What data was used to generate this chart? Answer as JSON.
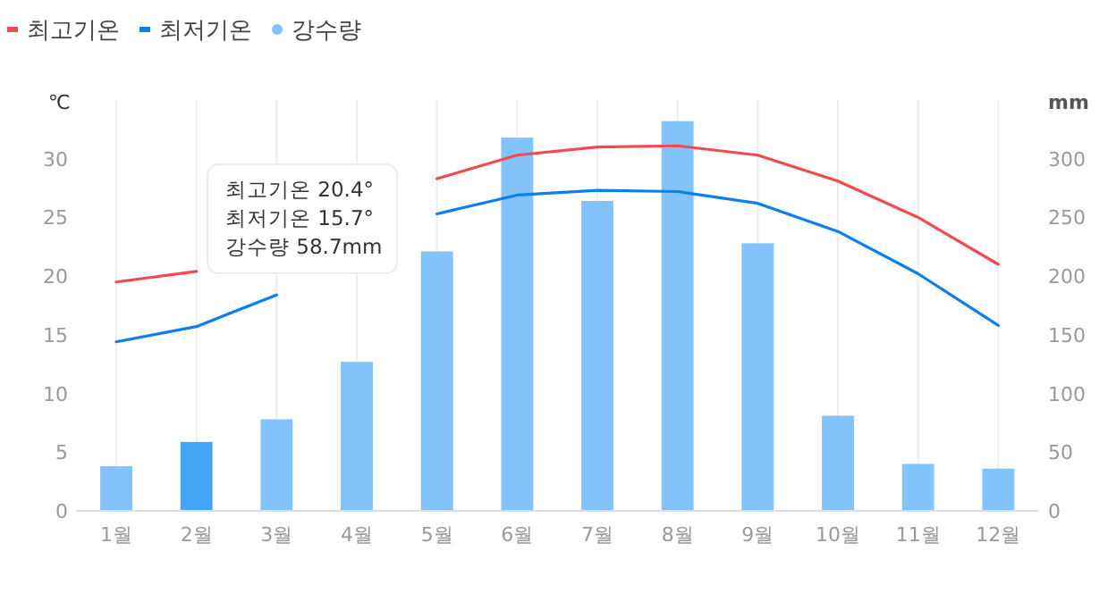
{
  "chart_data": {
    "type": "bar",
    "ylabel": "℃",
    "y2label": "mm",
    "categories": [
      "1월",
      "2월",
      "3월",
      "4월",
      "5월",
      "6월",
      "7월",
      "8월",
      "9월",
      "10월",
      "11월",
      "12월"
    ],
    "series": [
      {
        "name": "최고기온",
        "type": "line",
        "color": "#f5484f",
        "values": [
          19.5,
          20.4,
          null,
          null,
          28.3,
          30.3,
          31.0,
          31.1,
          30.3,
          28.1,
          25.0,
          21.0
        ]
      },
      {
        "name": "최저기온",
        "type": "line",
        "color": "#0a7ff0",
        "values": [
          14.4,
          15.7,
          18.4,
          null,
          25.3,
          26.9,
          27.3,
          27.2,
          26.2,
          23.8,
          20.2,
          15.8
        ]
      },
      {
        "name": "강수량",
        "axis": "y2",
        "color": "#82c3fc",
        "colors": [
          "#82c3fc",
          "#42a5f5",
          "#82c3fc",
          "#82c3fc",
          "#82c3fc",
          "#82c3fc",
          "#82c3fc",
          "#82c3fc",
          "#82c3fc",
          "#82c3fc",
          "#82c3fc",
          "#82c3fc"
        ],
        "values": [
          38,
          58.7,
          78,
          127,
          221,
          318,
          264,
          332,
          228,
          81,
          40,
          36
        ]
      }
    ],
    "ylim": [
      0,
      35
    ],
    "yticks": [
      0,
      5,
      10,
      15,
      20,
      25,
      30
    ],
    "y2lim": [
      0,
      350
    ],
    "y2ticks": [
      0,
      50,
      100,
      150,
      200,
      250,
      300
    ],
    "grid": "x",
    "legend": "top left",
    "marker": "none",
    "line_style": "solid",
    "annotations": [
      "최고기온 20.4°",
      "최저기온 15.7°",
      "강수량 58.7mm"
    ]
  }
}
